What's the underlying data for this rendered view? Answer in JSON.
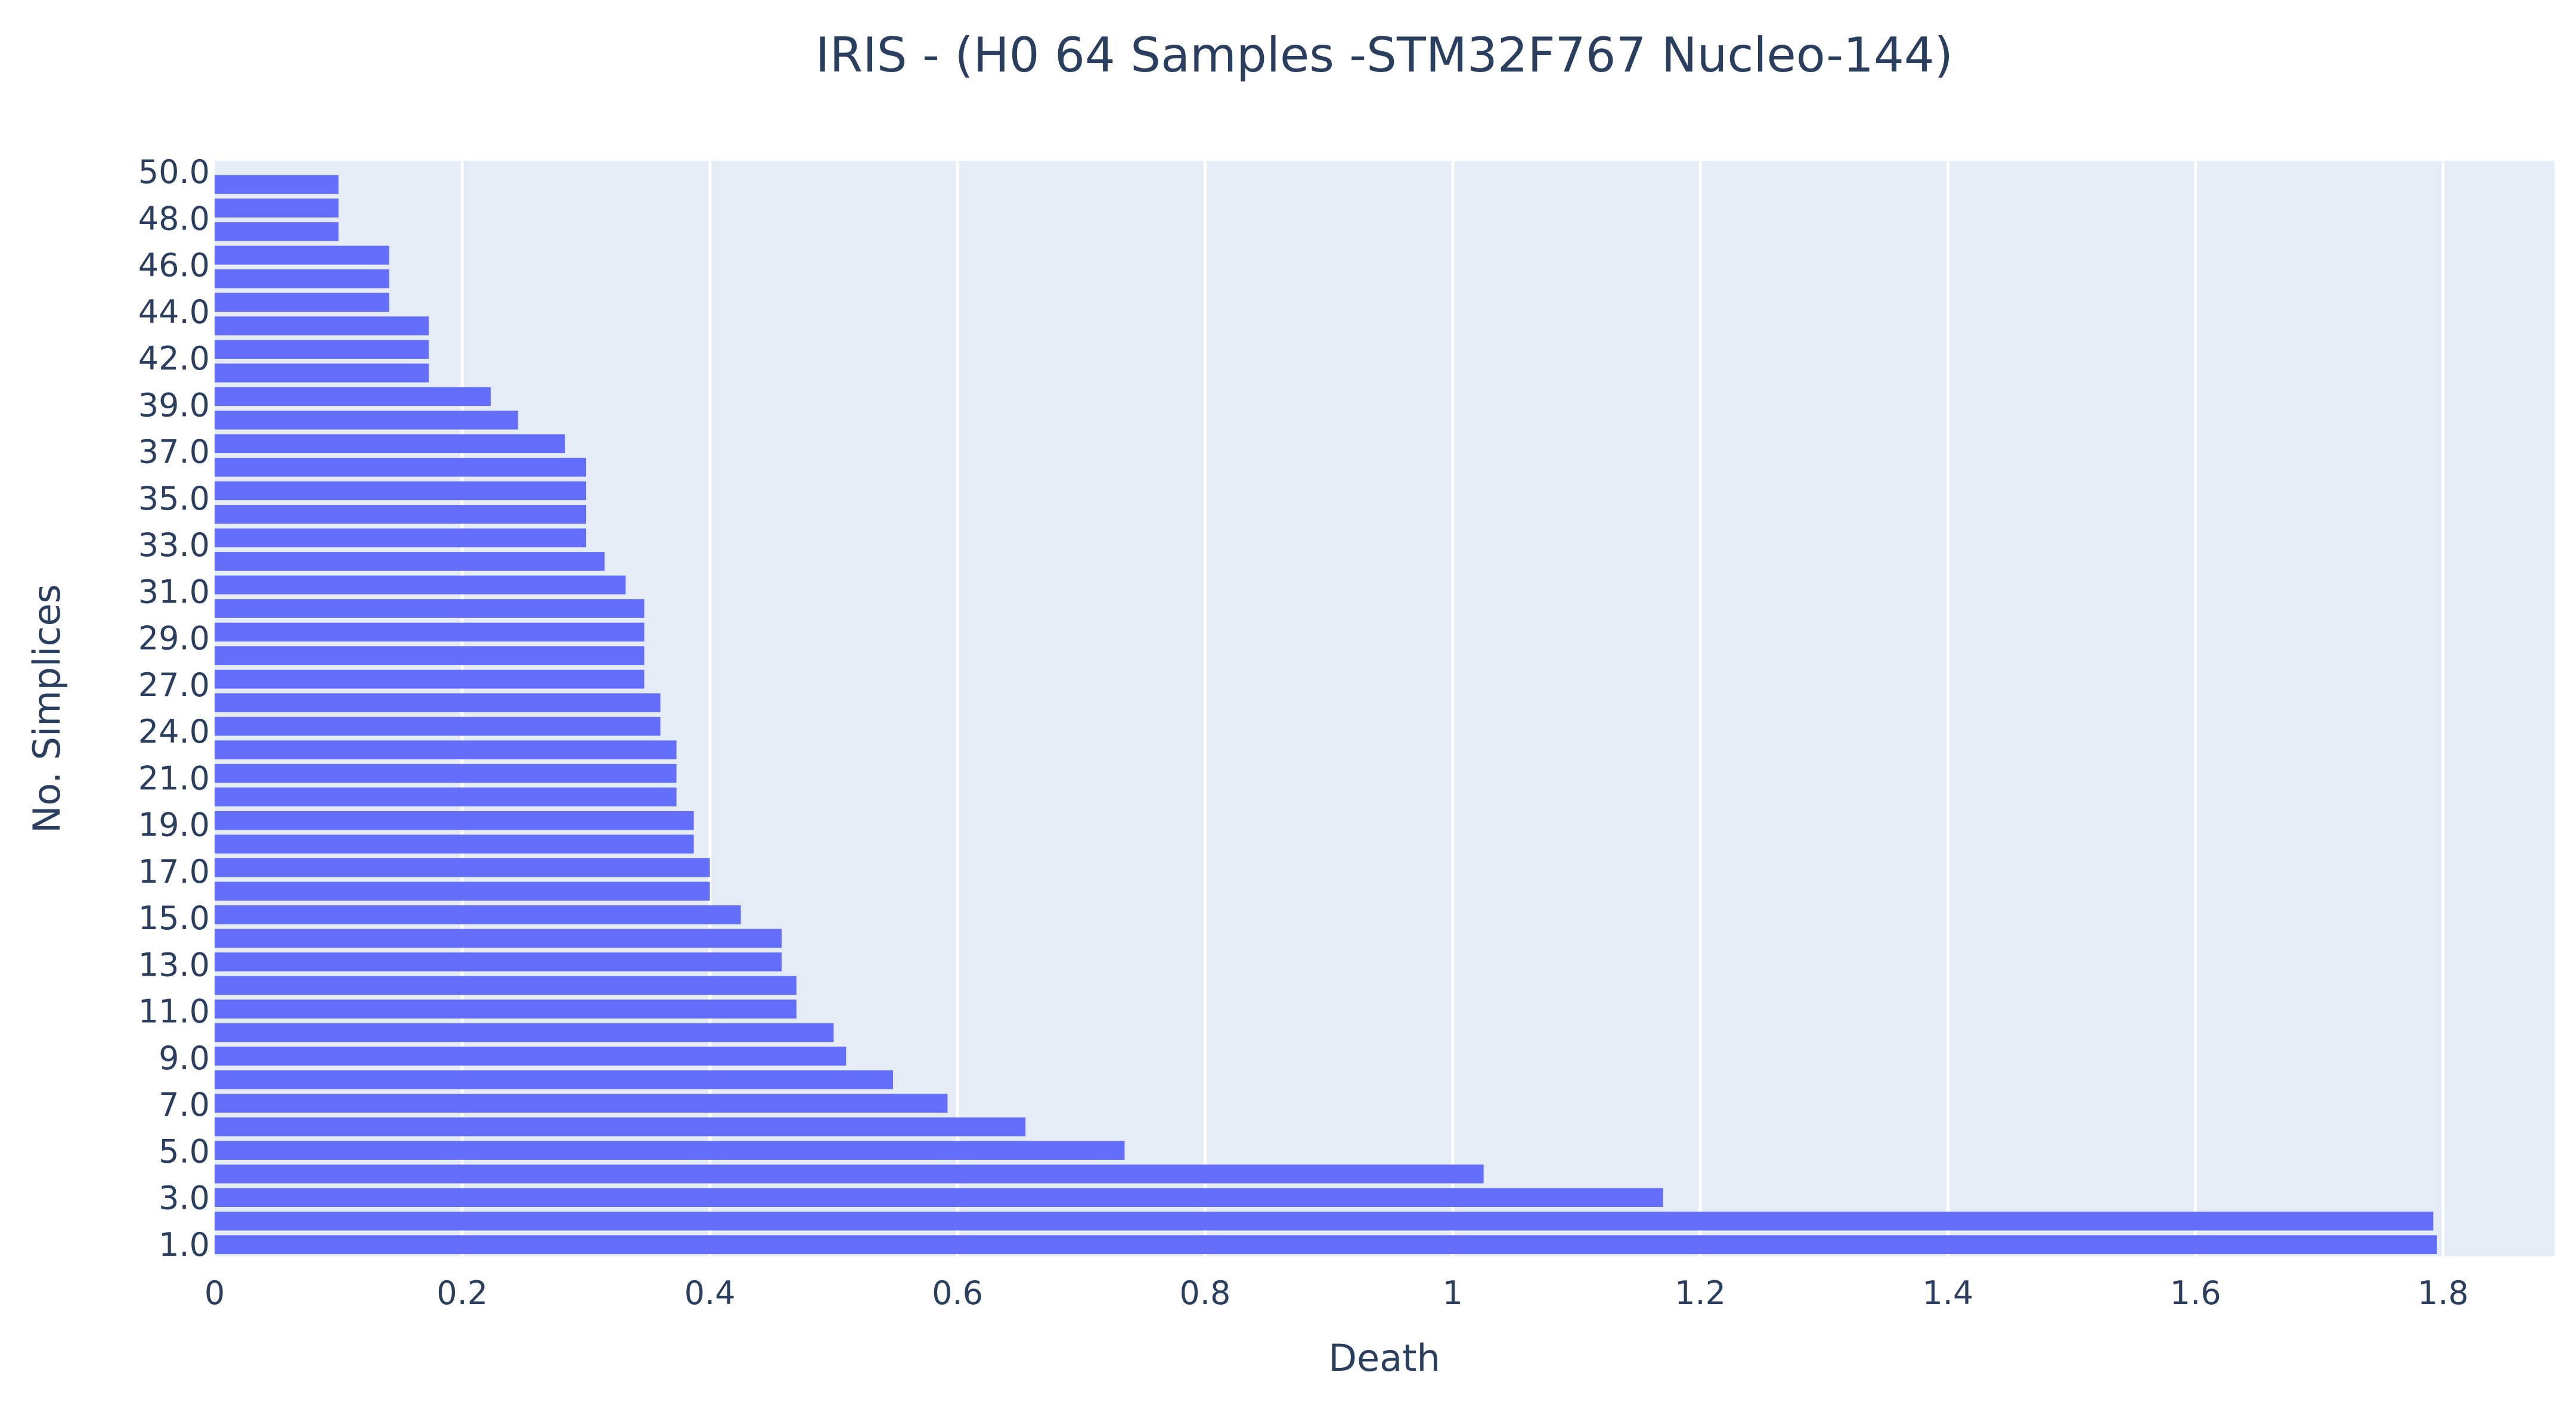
{
  "chart_data": {
    "type": "bar",
    "orientation": "horizontal",
    "title": "IRIS - (H0 64 Samples -STM32F767 Nucleo-144)",
    "xlabel": "Death",
    "ylabel": "No. Simplices",
    "xlim": [
      0,
      1.89
    ],
    "x_ticks": [
      0,
      0.2,
      0.4,
      0.6,
      0.8,
      1,
      1.2,
      1.4,
      1.6,
      1.8
    ],
    "x_tick_labels": [
      "0",
      "0.2",
      "0.4",
      "0.6",
      "0.8",
      "1",
      "1.2",
      "1.4",
      "1.6",
      "1.8"
    ],
    "y_tick_labels": [
      "50.0",
      "48.0",
      "46.0",
      "44.0",
      "42.0",
      "39.0",
      "37.0",
      "35.0",
      "33.0",
      "31.0",
      "29.0",
      "27.0",
      "24.0",
      "21.0",
      "19.0",
      "17.0",
      "15.0",
      "13.0",
      "11.0",
      "9.0",
      "7.0",
      "5.0",
      "3.0",
      "1.0"
    ],
    "grid": true,
    "legend": "none",
    "bar_color": "#636efa",
    "plot_background": "#e5ecf6",
    "values": [
      1.795,
      1.792,
      1.17,
      1.025,
      0.735,
      0.655,
      0.592,
      0.548,
      0.51,
      0.5,
      0.47,
      0.47,
      0.458,
      0.458,
      0.425,
      0.4,
      0.4,
      0.387,
      0.387,
      0.373,
      0.373,
      0.373,
      0.36,
      0.36,
      0.347,
      0.347,
      0.347,
      0.347,
      0.332,
      0.315,
      0.3,
      0.3,
      0.3,
      0.3,
      0.283,
      0.245,
      0.223,
      0.173,
      0.173,
      0.173,
      0.141,
      0.141,
      0.141,
      0.1,
      0.1,
      0.1
    ]
  }
}
